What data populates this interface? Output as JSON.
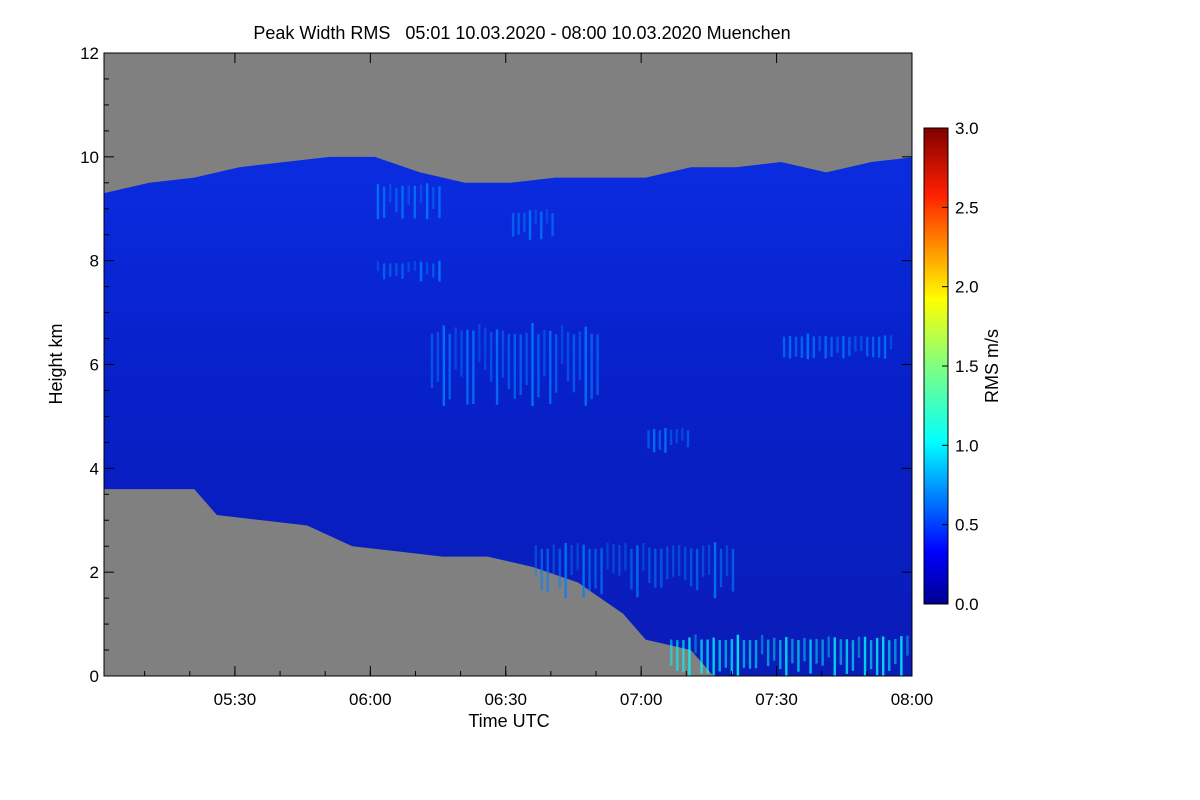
{
  "chart_data": {
    "type": "heatmap",
    "title": "Peak Width RMS   05:01 10.03.2020 - 08:00 10.03.2020 Muenchen",
    "xlabel": "Time UTC",
    "ylabel": "Height km",
    "x_range": [
      "05:01",
      "08:00"
    ],
    "x_ticks": [
      "05:30",
      "06:00",
      "06:30",
      "07:00",
      "07:30",
      "08:00"
    ],
    "ylim": [
      0,
      12
    ],
    "y_ticks": [
      "0",
      "2",
      "4",
      "6",
      "8",
      "10",
      "12"
    ],
    "no_data_color": "#808080",
    "colorbar": {
      "label": "RMS m/s",
      "range": [
        0.0,
        3.0
      ],
      "ticks": [
        "0.0",
        "0.5",
        "1.0",
        "1.5",
        "2.0",
        "2.5",
        "3.0"
      ],
      "colors": [
        "#00008f",
        "#0000ff",
        "#0080ff",
        "#00ffff",
        "#80ff80",
        "#ffff00",
        "#ff8000",
        "#ff0000",
        "#800000"
      ]
    },
    "data_envelope": {
      "description_free": true,
      "top_km": [
        [
          0,
          9.3
        ],
        [
          10,
          9.5
        ],
        [
          20,
          9.6
        ],
        [
          30,
          9.8
        ],
        [
          40,
          9.9
        ],
        [
          50,
          10.0
        ],
        [
          60,
          10.0
        ],
        [
          70,
          9.7
        ],
        [
          80,
          9.5
        ],
        [
          90,
          9.5
        ],
        [
          100,
          9.6
        ],
        [
          110,
          9.6
        ],
        [
          120,
          9.6
        ],
        [
          130,
          9.8
        ],
        [
          140,
          9.8
        ],
        [
          150,
          9.9
        ],
        [
          160,
          9.7
        ],
        [
          170,
          9.9
        ],
        [
          180,
          10.0
        ]
      ],
      "bottom_km": [
        [
          0,
          3.6
        ],
        [
          10,
          3.6
        ],
        [
          20,
          3.6
        ],
        [
          25,
          3.1
        ],
        [
          35,
          3.0
        ],
        [
          45,
          2.9
        ],
        [
          55,
          2.5
        ],
        [
          65,
          2.4
        ],
        [
          75,
          2.3
        ],
        [
          85,
          2.3
        ],
        [
          95,
          2.1
        ],
        [
          105,
          1.8
        ],
        [
          115,
          1.2
        ],
        [
          120,
          0.7
        ],
        [
          130,
          0.5
        ],
        [
          135,
          0.0
        ],
        [
          180,
          0.0
        ]
      ]
    },
    "features": [
      {
        "t0": 60,
        "t1": 75,
        "h0": 8.8,
        "h1": 9.5,
        "rms": 0.8
      },
      {
        "t0": 60,
        "t1": 75,
        "h0": 7.6,
        "h1": 8.0,
        "rms": 0.8
      },
      {
        "t0": 90,
        "t1": 100,
        "h0": 8.4,
        "h1": 9.0,
        "rms": 0.7
      },
      {
        "t0": 72,
        "t1": 110,
        "h0": 5.2,
        "h1": 6.8,
        "rms": 0.7
      },
      {
        "t0": 120,
        "t1": 130,
        "h0": 4.3,
        "h1": 4.8,
        "rms": 0.7
      },
      {
        "t0": 150,
        "t1": 175,
        "h0": 6.1,
        "h1": 6.6,
        "rms": 0.8
      },
      {
        "t0": 95,
        "t1": 140,
        "h0": 1.5,
        "h1": 2.6,
        "rms": 0.9
      },
      {
        "t0": 125,
        "t1": 180,
        "h0": 0.0,
        "h1": 0.8,
        "rms": 1.2
      }
    ]
  }
}
